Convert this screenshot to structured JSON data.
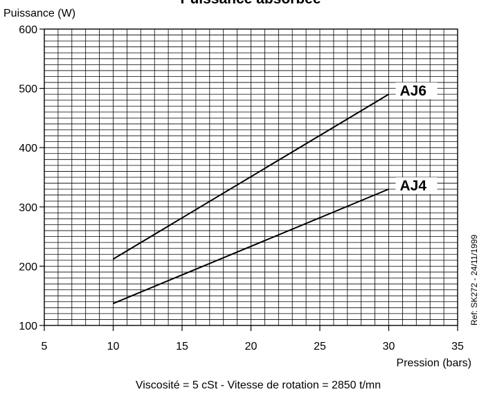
{
  "chart_data": {
    "type": "line",
    "title": "Puissance absorbée",
    "ylabel": "Puissance (W)",
    "xlabel": "Pression  (bars)",
    "xlim": [
      5,
      35
    ],
    "ylim": [
      100,
      600
    ],
    "x_ticks": [
      "5",
      "10",
      "15",
      "20",
      "25",
      "30",
      "35"
    ],
    "y_ticks": [
      "100",
      "200",
      "300",
      "400",
      "500",
      "600"
    ],
    "grid": true,
    "series": [
      {
        "name": "AJ6",
        "x": [
          10,
          30
        ],
        "y": [
          212,
          490
        ]
      },
      {
        "name": "AJ4",
        "x": [
          10,
          30
        ],
        "y": [
          137,
          330
        ]
      }
    ],
    "annotations": {
      "reference": "Ref: SK272 - 24/11/1999",
      "conditions": "Viscosité = 5 cSt  -  Vitesse de rotation = 2850 t/mn"
    }
  }
}
